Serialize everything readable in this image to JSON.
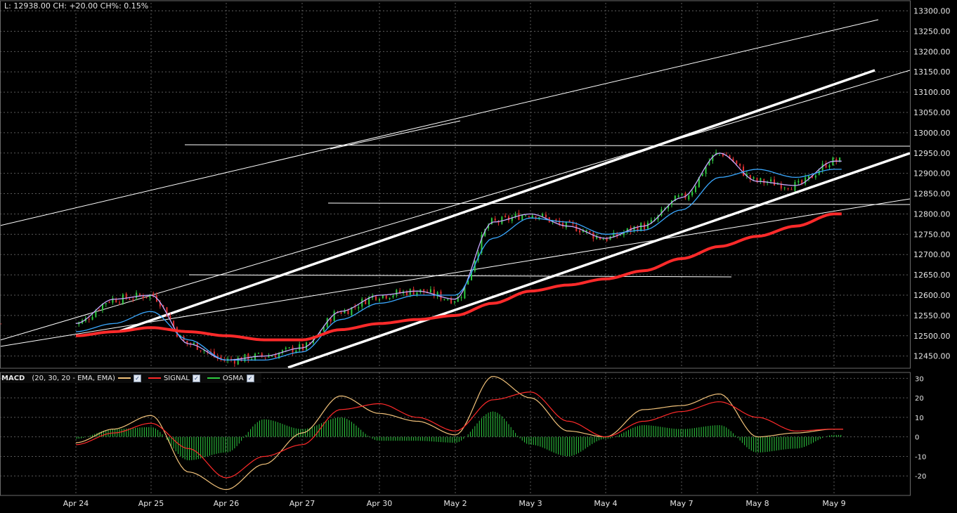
{
  "readout": "L: 12938.00 CH: +20.00 CH%: 0.15%",
  "colors": {
    "background": "#000000",
    "grid": "#5a5a5a",
    "bull_candle": "#2ecc40",
    "bear_candle": "#e23030",
    "ma_slow": "#ff2a2a",
    "ma_fast_purple": "#c6a8ff",
    "ma_fast_blue": "#3aa8ff",
    "macd_line": "#f2c27a",
    "signal_line": "#ff2a2a",
    "osma": "#2ecc40",
    "trendline": "#ffffff"
  },
  "macd_legend": {
    "title": "MACD",
    "params": "(20, 30, 20 - EMA, EMA)",
    "signal": "SIGNAL",
    "osma": "OSMA"
  },
  "chart_data": [
    {
      "type": "line",
      "title": "",
      "x_labels": [
        "Apr 24",
        "Apr 25",
        "Apr 26",
        "Apr 27",
        "Apr 30",
        "May 2",
        "May 3",
        "May 4",
        "May 7",
        "May 8",
        "May 9"
      ],
      "ylim": [
        12420,
        13320
      ],
      "y_ticks": [
        "12450.00",
        "12500.00",
        "12550.00",
        "12600.00",
        "12650.00",
        "12700.00",
        "12750.00",
        "12800.00",
        "12850.00",
        "12900.00",
        "12950.00",
        "13000.00",
        "13050.00",
        "13100.00",
        "13150.00",
        "13200.00",
        "13250.00",
        "13300.00"
      ],
      "grid": true,
      "series": [
        {
          "x": [
            0,
            0.5,
            1,
            1.5,
            2,
            2.5,
            3,
            3.5,
            4,
            4.5,
            5,
            5.5,
            6,
            6.5,
            7,
            7.5,
            8,
            8.5,
            9,
            9.5,
            10
          ],
          "values": [
            12530,
            12590,
            12600,
            12480,
            12440,
            12450,
            12470,
            12560,
            12600,
            12610,
            12590,
            12780,
            12800,
            12770,
            12740,
            12770,
            12840,
            12950,
            12880,
            12870,
            12930
          ]
        },
        {
          "x": [
            0,
            0.5,
            1,
            1.5,
            2,
            2.5,
            3,
            3.5,
            4,
            4.5,
            5,
            5.5,
            6,
            6.5,
            7,
            7.5,
            8,
            8.5,
            9,
            9.5,
            10
          ],
          "values": [
            12510,
            12530,
            12560,
            12490,
            12440,
            12440,
            12460,
            12540,
            12580,
            12600,
            12600,
            12740,
            12790,
            12780,
            12750,
            12760,
            12810,
            12890,
            12910,
            12890,
            12910
          ]
        },
        {
          "x": [
            0,
            0.5,
            1,
            1.5,
            2,
            2.5,
            3,
            3.5,
            4,
            4.5,
            5,
            5.5,
            6,
            6.5,
            7,
            7.5,
            8,
            8.5,
            9,
            9.5,
            10
          ],
          "values": [
            12500,
            12510,
            12520,
            12510,
            12500,
            12490,
            12490,
            12515,
            12530,
            12540,
            12550,
            12580,
            12610,
            12625,
            12640,
            12660,
            12690,
            12720,
            12745,
            12770,
            12800
          ]
        }
      ]
    },
    {
      "type": "bar",
      "title": "",
      "ylim": [
        -30,
        33
      ],
      "y_ticks": [
        "30",
        "20",
        "10",
        "0",
        "-10",
        "-20"
      ],
      "grid": true,
      "series": [
        {
          "name": "OSMA",
          "x": [
            0,
            0.5,
            1,
            1.5,
            2,
            2.5,
            3,
            3.5,
            4,
            4.5,
            5,
            5.5,
            6,
            6.5,
            7,
            7.5,
            8,
            8.5,
            9,
            9.5,
            10
          ],
          "values": [
            -1,
            4,
            5,
            -12,
            -8,
            9,
            4,
            10,
            -2,
            -2,
            -3,
            13,
            -4,
            -10,
            -1,
            6,
            4,
            6,
            -8,
            -6,
            1
          ]
        },
        {
          "name": "MACD",
          "x": [
            0,
            0.5,
            1,
            1.5,
            2,
            2.5,
            3,
            3.5,
            4,
            4.5,
            5,
            5.5,
            6,
            6.5,
            7,
            7.5,
            8,
            8.5,
            9,
            9.5,
            10
          ],
          "values": [
            -3,
            4,
            11,
            -18,
            -27,
            -14,
            2,
            21,
            12,
            8,
            1,
            31,
            20,
            3,
            0,
            14,
            16,
            22,
            0,
            2,
            4
          ]
        },
        {
          "name": "SIGNAL",
          "x": [
            0,
            0.5,
            1,
            1.5,
            2,
            2.5,
            3,
            3.5,
            4,
            4.5,
            5,
            5.5,
            6,
            6.5,
            7,
            7.5,
            8,
            8.5,
            9,
            9.5,
            10
          ],
          "values": [
            -4,
            2,
            7,
            -6,
            -21,
            -10,
            -4,
            14,
            17,
            10,
            3,
            19,
            23,
            8,
            0,
            8,
            13,
            18,
            10,
            3,
            4
          ]
        }
      ]
    }
  ]
}
